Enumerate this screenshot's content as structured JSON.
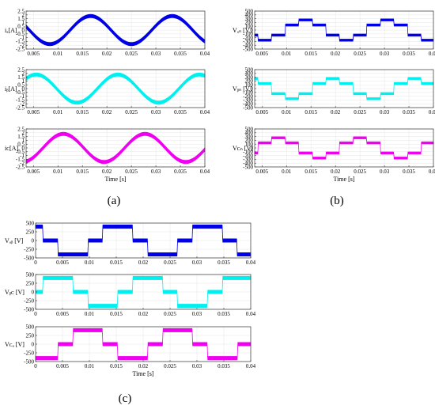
{
  "colors": {
    "blue": "#0000e6",
    "cyan": "#00f0f0",
    "magenta": "#f000f0"
  },
  "panel_labels": {
    "a": "(a)",
    "b": "(b)",
    "c": "(c)"
  },
  "x_tick_labels_ac": [
    "0.005",
    "0.01",
    "0.015",
    "0.02",
    "0.025",
    "0.03",
    "0.035",
    "0.04"
  ],
  "x_tick_labels_c": [
    "0",
    "0.005",
    "0.01",
    "0.015",
    "0.02",
    "0.025",
    "0.03",
    "0.035",
    "0.04"
  ],
  "chart_data": [
    {
      "id": "ia",
      "panel": "a",
      "type": "line",
      "ylabel": "iₐ[A]",
      "xlabel": "",
      "xlim": [
        0.0035,
        0.04
      ],
      "ylim": [
        -2.5,
        2.5
      ],
      "yticks": [
        "2.5",
        "2",
        "1.5",
        "1",
        "0.5",
        "0",
        "-0.5",
        "-1",
        "-1.5",
        "-2",
        "-2.5"
      ],
      "xticks": [
        0.005,
        0.01,
        0.015,
        0.02,
        0.025,
        0.03,
        0.035,
        0.04
      ],
      "series": [
        {
          "color": "blue",
          "amplitude": 1.85,
          "band": 0.45,
          "phase_deg": 90,
          "frequency_hz": 60
        }
      ]
    },
    {
      "id": "ib",
      "panel": "a",
      "type": "line",
      "ylabel": "iᵦ[A]",
      "xlabel": "",
      "xlim": [
        0.0035,
        0.04
      ],
      "ylim": [
        -2.5,
        2.5
      ],
      "yticks": [
        "2.5",
        "2",
        "1.5",
        "1",
        "0.5",
        "0",
        "-0.5",
        "-1",
        "-1.5",
        "-2",
        "-2.5"
      ],
      "xticks": [
        0.005,
        0.01,
        0.015,
        0.02,
        0.025,
        0.03,
        0.035,
        0.04
      ],
      "series": [
        {
          "color": "cyan",
          "amplitude": 1.85,
          "band": 0.45,
          "phase_deg": -30,
          "frequency_hz": 60
        }
      ]
    },
    {
      "id": "ic",
      "panel": "a",
      "type": "line",
      "ylabel": "iᴄ[A]",
      "xlabel": "Time [s]",
      "xlim": [
        0.0035,
        0.04
      ],
      "ylim": [
        -2.5,
        2.5
      ],
      "yticks": [
        "2.5",
        "2",
        "1.5",
        "1",
        "0.5",
        "0",
        "-0.5",
        "-1",
        "-1.5",
        "-2",
        "-2.5"
      ],
      "xticks": [
        0.005,
        0.01,
        0.015,
        0.02,
        0.025,
        0.03,
        0.035,
        0.04
      ],
      "series": [
        {
          "color": "magenta",
          "amplitude": 1.85,
          "band": 0.45,
          "phase_deg": 210,
          "frequency_hz": 60
        }
      ]
    },
    {
      "id": "van",
      "panel": "b",
      "type": "line",
      "ylabel": "Vₐₙ [V]",
      "xlabel": "",
      "xlim": [
        0.0035,
        0.04
      ],
      "ylim": [
        -500,
        500
      ],
      "yticks": [
        "500",
        "400",
        "300",
        "200",
        "100",
        "0",
        "-100",
        "-200",
        "-300",
        "-400",
        "-500"
      ],
      "xticks": [
        0.005,
        0.01,
        0.015,
        0.02,
        0.025,
        0.03,
        0.035,
        0.04
      ],
      "series": [
        {
          "color": "blue",
          "levels": [
            267,
            133,
            -133,
            -267,
            -133,
            133
          ],
          "band": 60,
          "phase_deg": 90,
          "frequency_hz": 60
        }
      ]
    },
    {
      "id": "vbn",
      "panel": "b",
      "type": "line",
      "ylabel": "Vᵦₙ [V]",
      "xlabel": "",
      "xlim": [
        0.0035,
        0.04
      ],
      "ylim": [
        -500,
        500
      ],
      "yticks": [
        "500",
        "400",
        "300",
        "200",
        "100",
        "0",
        "-100",
        "-200",
        "-300",
        "-400",
        "-500"
      ],
      "xticks": [
        0.005,
        0.01,
        0.015,
        0.02,
        0.025,
        0.03,
        0.035,
        0.04
      ],
      "series": [
        {
          "color": "cyan",
          "levels": [
            267,
            133,
            -133,
            -267,
            -133,
            133
          ],
          "band": 60,
          "phase_deg": -30,
          "frequency_hz": 60
        }
      ]
    },
    {
      "id": "vcn",
      "panel": "b",
      "type": "line",
      "ylabel": "Vᴄₙ [V]",
      "xlabel": "Time [s]",
      "xlim": [
        0.0035,
        0.04
      ],
      "ylim": [
        -500,
        500
      ],
      "yticks": [
        "500",
        "400",
        "300",
        "200",
        "100",
        "0",
        "-100",
        "-200",
        "-300",
        "-400",
        "-500"
      ],
      "xticks": [
        0.005,
        0.01,
        0.015,
        0.02,
        0.025,
        0.03,
        0.035,
        0.04
      ],
      "series": [
        {
          "color": "magenta",
          "levels": [
            267,
            133,
            -133,
            -267,
            -133,
            133
          ],
          "band": 60,
          "phase_deg": 210,
          "frequency_hz": 60
        }
      ]
    },
    {
      "id": "vab",
      "panel": "c",
      "type": "line",
      "ylabel": "Vₐᵦ [V]",
      "xlabel": "",
      "xlim": [
        0,
        0.04
      ],
      "ylim": [
        -500,
        500
      ],
      "yticks": [
        "500",
        "250",
        "0",
        "-250",
        "-500"
      ],
      "xticks": [
        0,
        0.005,
        0.01,
        0.015,
        0.02,
        0.025,
        0.03,
        0.035,
        0.04
      ],
      "series": [
        {
          "color": "blue",
          "levels": [
            400,
            0,
            -400
          ],
          "band": 100,
          "phase_deg": 120,
          "frequency_hz": 60
        }
      ]
    },
    {
      "id": "vbc",
      "panel": "c",
      "type": "line",
      "ylabel": "Vᵦᴄ [V]",
      "xlabel": "",
      "xlim": [
        0,
        0.04
      ],
      "ylim": [
        -500,
        500
      ],
      "yticks": [
        "500",
        "250",
        "0",
        "-250",
        "-500"
      ],
      "xticks": [
        0,
        0.005,
        0.01,
        0.015,
        0.02,
        0.025,
        0.03,
        0.035,
        0.04
      ],
      "series": [
        {
          "color": "cyan",
          "levels": [
            400,
            0,
            -400
          ],
          "band": 100,
          "phase_deg": 0,
          "frequency_hz": 60
        }
      ]
    },
    {
      "id": "vca",
      "panel": "c",
      "type": "line",
      "ylabel": "Vᴄₐ [V]",
      "xlabel": "Time [s]",
      "xlim": [
        0,
        0.04
      ],
      "ylim": [
        -500,
        500
      ],
      "yticks": [
        "500",
        "250",
        "0",
        "-250",
        "-500"
      ],
      "xticks": [
        0,
        0.005,
        0.01,
        0.015,
        0.02,
        0.025,
        0.03,
        0.035,
        0.04
      ],
      "series": [
        {
          "color": "magenta",
          "levels": [
            400,
            0,
            -400
          ],
          "band": 100,
          "phase_deg": -120,
          "frequency_hz": 60
        }
      ]
    }
  ]
}
